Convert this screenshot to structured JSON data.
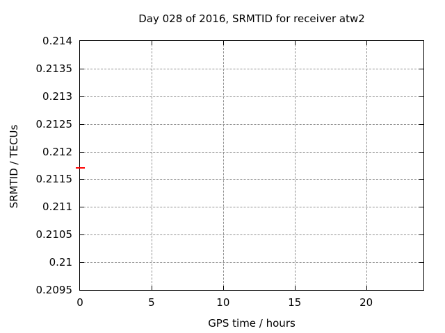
{
  "chart_data": {
    "type": "scatter",
    "title": "Day 028 of 2016, SRMTID for receiver atw2",
    "xlabel": "GPS time / hours",
    "ylabel": "SRMTID / TECUs",
    "xlim": [
      0,
      24
    ],
    "ylim": [
      0.2095,
      0.214
    ],
    "x_ticks": [
      0,
      5,
      10,
      15,
      20
    ],
    "y_ticks": [
      0.2095,
      0.21,
      0.2105,
      0.211,
      0.2115,
      0.212,
      0.2125,
      0.213,
      0.2135,
      0.214
    ],
    "grid": true,
    "grid_style": "dashed",
    "legend_position": "none",
    "series": [
      {
        "name": "SRMTID",
        "marker": "horizontal-dash",
        "color": "#ff0000",
        "points": [
          {
            "x": 0,
            "y": 0.2117
          }
        ]
      }
    ]
  },
  "colors": {
    "background": "#ffffff",
    "axis": "#000000",
    "grid": "#909090",
    "text": "#000000",
    "marker": "#ff0000"
  }
}
